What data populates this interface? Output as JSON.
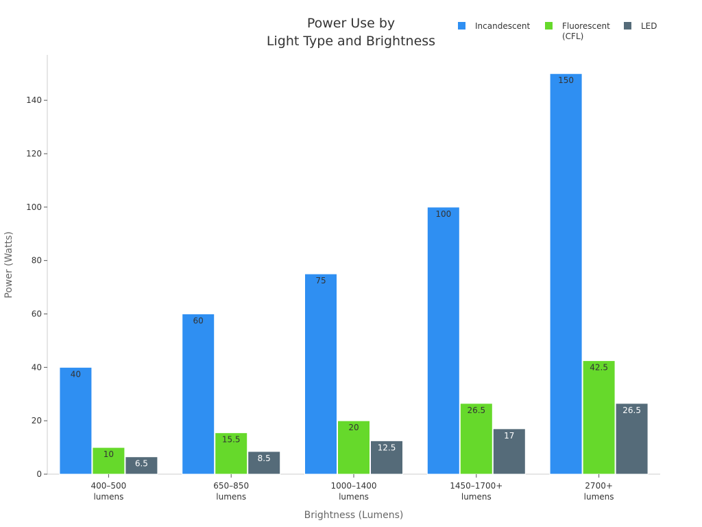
{
  "chart_data": {
    "type": "bar",
    "title_lines": [
      "Power Use by",
      "Light Type and Brightness"
    ],
    "xlabel": "Brightness (Lumens)",
    "ylabel": "Power (Watts)",
    "categories": [
      [
        "400–500",
        "lumens"
      ],
      [
        "650–850",
        "lumens"
      ],
      [
        "1000–1400",
        "lumens"
      ],
      [
        "1450–1700+",
        "lumens"
      ],
      [
        "2700+",
        "lumens"
      ]
    ],
    "ylim": [
      0,
      157
    ],
    "yticks": [
      0,
      20,
      40,
      60,
      80,
      100,
      120,
      140
    ],
    "grid": false,
    "legend_position": "top-right",
    "series": [
      {
        "name_lines": [
          "Incandescent"
        ],
        "color": "#2f8ff2",
        "label_color": "#333333",
        "values": [
          40,
          60,
          75,
          100,
          150
        ],
        "labels": [
          "40",
          "60",
          "75",
          "100",
          "150"
        ]
      },
      {
        "name_lines": [
          "Fluorescent",
          "(CFL)"
        ],
        "color": "#66d92b",
        "label_color": "#333333",
        "values": [
          10,
          15.5,
          20,
          26.5,
          42.5
        ],
        "labels": [
          "10",
          "15.5",
          "20",
          "26.5",
          "42.5"
        ]
      },
      {
        "name_lines": [
          "LED"
        ],
        "color": "#556b79",
        "label_color": "#ffffff",
        "values": [
          6.5,
          8.5,
          12.5,
          17,
          26.5
        ],
        "labels": [
          "6.5",
          "8.5",
          "12.5",
          "17",
          "26.5"
        ]
      }
    ]
  }
}
